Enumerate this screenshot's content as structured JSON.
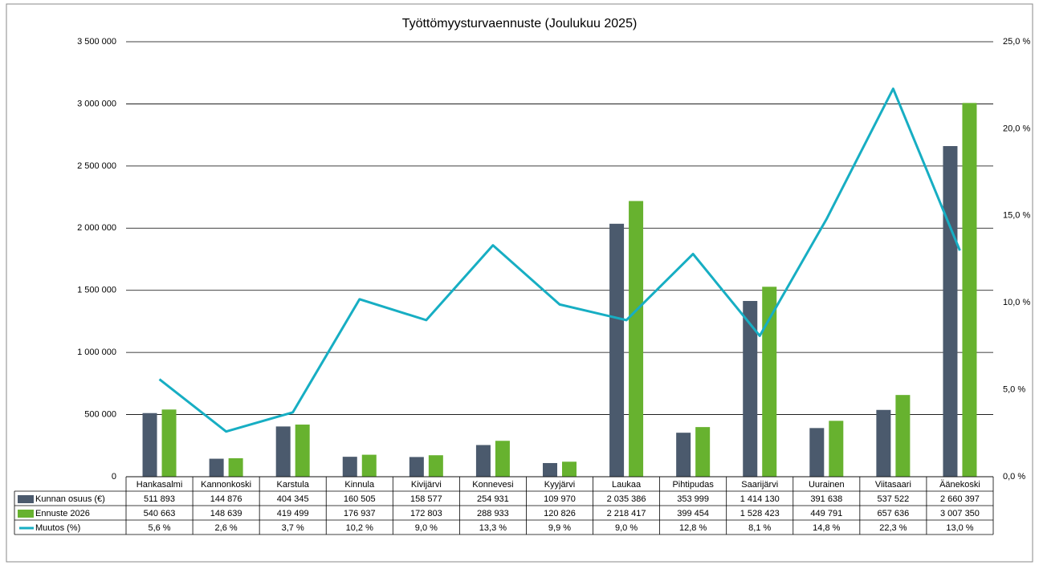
{
  "chart_data": {
    "type": "bar",
    "title": "Työttömyysturvaennuste (Joulukuu 2025)",
    "categories": [
      "Hankasalmi",
      "Kannonkoski",
      "Karstula",
      "Kinnula",
      "Kivijärvi",
      "Konnevesi",
      "Kyyjärvi",
      "Laukaa",
      "Pihtipudas",
      "Saarijärvi",
      "Uurainen",
      "Viitasaari",
      "Äänekoski"
    ],
    "series": [
      {
        "name": "Kunnan osuus (€)",
        "type": "bar",
        "color": "#4b5a6d",
        "values": [
          511893,
          144876,
          404345,
          160505,
          158577,
          254931,
          109970,
          2035386,
          353999,
          1414130,
          391638,
          537522,
          2660397
        ],
        "value_labels": [
          "511 893",
          "144 876",
          "404 345",
          "160 505",
          "158 577",
          "254 931",
          "109 970",
          "2 035 386",
          "353 999",
          "1 414 130",
          "391 638",
          "537 522",
          "2 660 397"
        ]
      },
      {
        "name": "Ennuste 2026",
        "type": "bar",
        "color": "#67b22f",
        "values": [
          540663,
          148639,
          419499,
          176937,
          172803,
          288933,
          120826,
          2218417,
          399454,
          1528423,
          449791,
          657636,
          3007350
        ],
        "value_labels": [
          "540 663",
          "148 639",
          "419 499",
          "176 937",
          "172 803",
          "288 933",
          "120 826",
          "2 218 417",
          "399 454",
          "1 528 423",
          "449 791",
          "657 636",
          "3 007 350"
        ]
      },
      {
        "name": "Muutos (%)",
        "type": "line",
        "axis": "y2",
        "color": "#17aec3",
        "values": [
          5.6,
          2.6,
          3.7,
          10.2,
          9.0,
          13.3,
          9.9,
          9.0,
          12.8,
          8.1,
          14.8,
          22.3,
          13.0
        ],
        "value_labels": [
          "5,6 %",
          "2,6 %",
          "3,7 %",
          "10,2 %",
          "9,0 %",
          "13,3 %",
          "9,9 %",
          "9,0 %",
          "12,8 %",
          "8,1 %",
          "14,8 %",
          "22,3 %",
          "13,0 %"
        ]
      }
    ],
    "ylim": [
      0,
      3500000
    ],
    "yticks": [
      0,
      {
        "value": 500000,
        "label": "500 000"
      },
      {
        "value": 1000000,
        "label": "1 000 000"
      },
      {
        "value": 1500000,
        "label": "1 500 000"
      },
      {
        "value": 2000000,
        "label": "2 000 000"
      },
      {
        "value": 2500000,
        "label": "2 500 000"
      },
      {
        "value": 3000000,
        "label": "3 000 000"
      },
      {
        "value": 3500000,
        "label": "3 500 000"
      }
    ],
    "y2lim": [
      0,
      25
    ],
    "y2ticks": [
      {
        "value": 0,
        "label": "0,0 %"
      },
      {
        "value": 5,
        "label": "5,0 %"
      },
      {
        "value": 10,
        "label": "10,0 %"
      },
      {
        "value": 15,
        "label": "15,0 %"
      },
      {
        "value": 20,
        "label": "20,0 %"
      },
      {
        "value": 25,
        "label": "25,0 %"
      }
    ],
    "grid": true,
    "data_table": true
  }
}
